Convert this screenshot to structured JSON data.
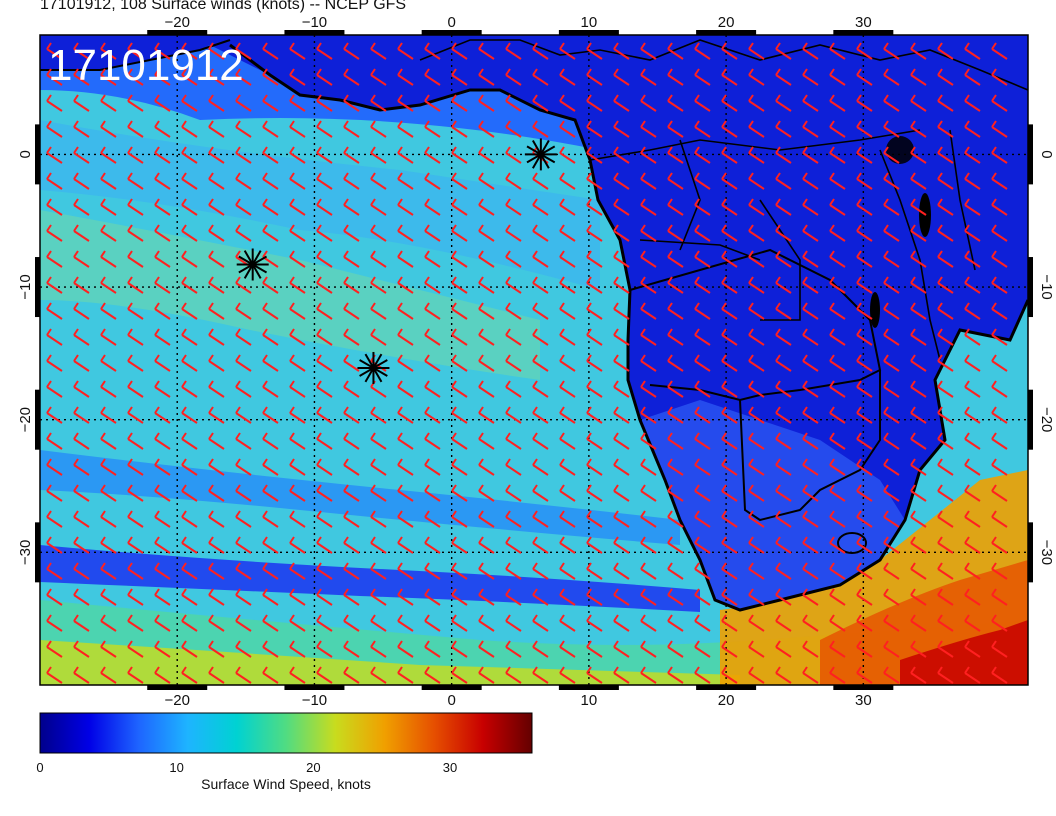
{
  "title": "17101912, 108 Surface winds (knots) -- NCEP GFS",
  "map": {
    "stamp": "17101912",
    "lon_ticks": [
      "−20",
      "−10",
      "0",
      "10",
      "20",
      "30"
    ],
    "lat_ticks": [
      "0",
      "−10",
      "−20",
      "−30"
    ],
    "lon_range": [
      -30,
      42
    ],
    "lat_range": [
      -40,
      9
    ],
    "field": "surface wind speed and wind barbs",
    "barb_color": "#ff2020",
    "coast_color": "#000000",
    "markers": [
      {
        "lon": 6.5,
        "lat": 0
      },
      {
        "lon": -14.5,
        "lat": -8.3
      },
      {
        "lon": -5.7,
        "lat": -16.1
      }
    ]
  },
  "colorbar": {
    "label": "Surface Wind Speed, knots",
    "ticks": [
      "0",
      "10",
      "20",
      "30"
    ],
    "range": [
      0,
      36
    ],
    "colors": [
      "#00008b",
      "#0000e6",
      "#1e64ff",
      "#1eb4ff",
      "#00d2d2",
      "#50dc82",
      "#c8dc1e",
      "#f0a000",
      "#e65000",
      "#c80000",
      "#640000"
    ]
  }
}
